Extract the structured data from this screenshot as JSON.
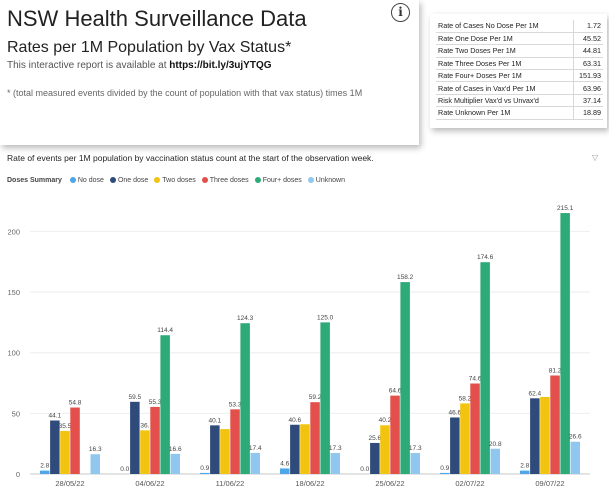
{
  "info_card": {
    "title": "NSW Health Surveillance Data",
    "subtitle": "Rates per 1M Population by Vax Status*",
    "link_prefix": "This interactive report is available at ",
    "link_url": "https://bit.ly/3ujYTQG",
    "note": "* (total measured events divided by the count of population with that vax status) times 1M",
    "info_button": "i"
  },
  "rates_table": [
    {
      "label": "Rate of Cases No Dose Per 1M",
      "value": "1.72"
    },
    {
      "label": "Rate One Dose Per 1M",
      "value": "45.52"
    },
    {
      "label": "Rate Two Doses Per 1M",
      "value": "44.81"
    },
    {
      "label": "Rate Three Doses Per 1M",
      "value": "63.31"
    },
    {
      "label": "Rate Four+ Doses Per 1M",
      "value": "151.93"
    },
    {
      "label": "Rate of Cases in Vax'd Per 1M",
      "value": "63.96"
    },
    {
      "label": "Risk Multiplier Vax'd vs Unvax'd",
      "value": "37.14"
    },
    {
      "label": "Rate Unknown Per 1M",
      "value": "18.89"
    }
  ],
  "chart": {
    "filter_icon": "▽",
    "legend_title": "Doses Summary"
  },
  "chart_data": {
    "type": "bar",
    "title": "Rate of events per 1M population by vaccination status count at the start of the observation week.",
    "categories": [
      "28/05/22",
      "04/06/22",
      "11/06/22",
      "18/06/22",
      "25/06/22",
      "02/07/22",
      "09/07/22"
    ],
    "series": [
      {
        "name": "No dose",
        "color": "#4da6e8",
        "values": [
          2.8,
          0.0,
          0.9,
          4.6,
          0.0,
          0.9,
          2.8
        ],
        "labels": [
          "2.8",
          "0.0",
          "0.9",
          "4.6",
          "0.0",
          "0.9",
          "2.8"
        ]
      },
      {
        "name": "One dose",
        "color": "#2f4b7c",
        "values": [
          44.1,
          59.5,
          40.1,
          40.6,
          25.6,
          46.6,
          62.4
        ],
        "labels": [
          "44.1",
          "59.5",
          "40.1",
          "40.6",
          "25.6",
          "46.6",
          "62.4"
        ]
      },
      {
        "name": "Two doses",
        "color": "#f2c40f",
        "values": [
          35.5,
          36.0,
          37.0,
          41.0,
          40.2,
          58.2,
          63.5
        ],
        "labels": [
          "35.5",
          "36.",
          "",
          "",
          "40.2",
          "58.2",
          ""
        ]
      },
      {
        "name": "Three doses",
        "color": "#e34f4a",
        "values": [
          54.8,
          55.3,
          53.3,
          59.2,
          64.6,
          74.6,
          81.2
        ],
        "labels": [
          "54.8",
          "55.3",
          "53.3",
          "59.2",
          "64.6",
          "74.6",
          "81.2"
        ]
      },
      {
        "name": "Four+ doses",
        "color": "#2eaa78",
        "values": [
          0,
          114.4,
          124.3,
          125.0,
          158.2,
          174.6,
          215.1
        ],
        "labels": [
          "",
          "114.4",
          "124.3",
          "125.0",
          "158.2",
          "174.6",
          "215.1"
        ]
      },
      {
        "name": "Unknown",
        "color": "#8fc7ee",
        "values": [
          16.3,
          16.6,
          17.4,
          17.3,
          17.3,
          20.8,
          26.6
        ],
        "labels": [
          "16.3",
          "16.6",
          "17.4",
          "17.3",
          "17.3",
          "20.8",
          "26.6"
        ]
      }
    ],
    "ylim": [
      0,
      230
    ],
    "yticks": [
      0,
      50,
      100,
      150,
      200
    ],
    "ytick_labels": [
      "0",
      "50",
      "100",
      "150",
      "200"
    ],
    "grid": true,
    "legend_position": "top-left"
  }
}
